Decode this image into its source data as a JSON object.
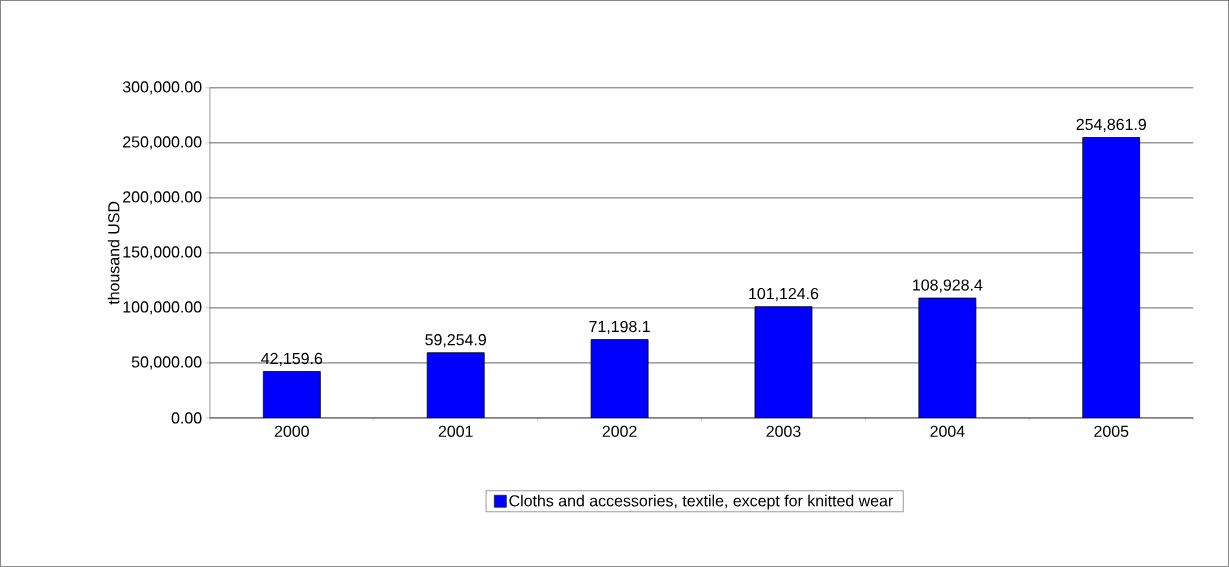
{
  "chart_data": {
    "type": "bar",
    "ylabel": "thousand USD",
    "categories": [
      "2000",
      "2001",
      "2002",
      "2003",
      "2004",
      "2005"
    ],
    "series": [
      {
        "name": "Cloths and accessories, textile, except for knitted wear",
        "color": "#0000ff",
        "values": [
          42159.6,
          59254.9,
          71198.1,
          101124.6,
          108928.4,
          254861.9
        ]
      }
    ],
    "value_labels": [
      "42,159.6",
      "59,254.9",
      "71,198.1",
      "101,124.6",
      "108,928.4",
      "254,861.9"
    ],
    "ylim": [
      0,
      300000
    ],
    "yticks": [
      {
        "value": 0,
        "label": "0.00"
      },
      {
        "value": 50000,
        "label": "50,000.00"
      },
      {
        "value": 100000,
        "label": "100,000.00"
      },
      {
        "value": 150000,
        "label": "150,000.00"
      },
      {
        "value": 200000,
        "label": "200,000.00"
      },
      {
        "value": 250000,
        "label": "250,000.00"
      },
      {
        "value": 300000,
        "label": "300,000.00"
      }
    ],
    "grid": "y",
    "legend": "bottom"
  }
}
